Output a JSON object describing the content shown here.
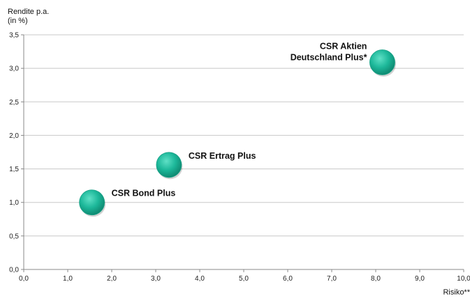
{
  "chart_data": {
    "type": "scatter",
    "ylabel_lines": [
      "Rendite p.a.",
      "(in %)"
    ],
    "xlabel": "Risiko**",
    "xlim": [
      0,
      10
    ],
    "ylim": [
      0,
      3.5
    ],
    "x_ticks": [
      "0,0",
      "1,0",
      "2,0",
      "3,0",
      "4,0",
      "5,0",
      "6,0",
      "7,0",
      "8,0",
      "9,0",
      "10,0"
    ],
    "y_ticks": [
      "0,0",
      "0,5",
      "1,0",
      "1,5",
      "2,0",
      "2,5",
      "3,0",
      "3,5"
    ],
    "grid": "horizontal",
    "marker_color": "#1db89a",
    "points": [
      {
        "label": [
          "CSR Bond Plus"
        ],
        "x": 1.55,
        "y": 1.0
      },
      {
        "label": [
          "CSR Ertrag Plus"
        ],
        "x": 3.3,
        "y": 1.56
      },
      {
        "label": [
          "CSR Aktien",
          "Deutschland Plus*"
        ],
        "x": 8.15,
        "y": 3.09
      }
    ]
  }
}
